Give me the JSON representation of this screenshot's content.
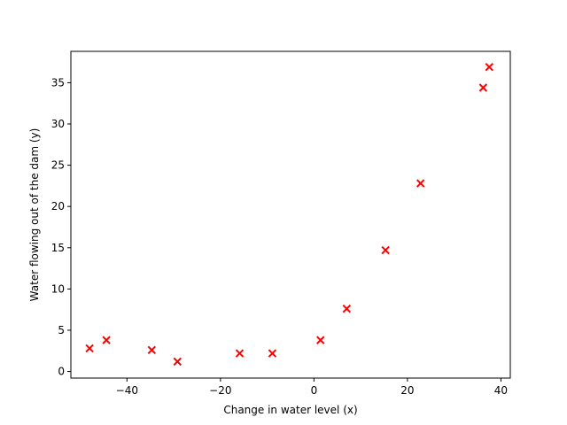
{
  "chart_data": {
    "type": "scatter",
    "title": "",
    "xlabel": "Change in water level (x)",
    "ylabel": "Water flowing out of the dam (y)",
    "xlim": [
      -52,
      42
    ],
    "ylim": [
      -0.8,
      38.8
    ],
    "xticks": [
      -40,
      -20,
      0,
      20,
      40
    ],
    "yticks": [
      0,
      5,
      10,
      15,
      20,
      25,
      30,
      35
    ],
    "grid": false,
    "legend": "none",
    "marker": "x",
    "marker_color": "#ff0000",
    "x": [
      -48.0,
      -44.4,
      -34.7,
      -29.2,
      -15.9,
      -8.9,
      1.4,
      7.0,
      15.3,
      22.8,
      36.2,
      37.5
    ],
    "y": [
      2.8,
      3.8,
      2.6,
      1.2,
      2.2,
      2.2,
      3.8,
      7.6,
      14.7,
      22.8,
      34.4,
      36.9
    ]
  }
}
